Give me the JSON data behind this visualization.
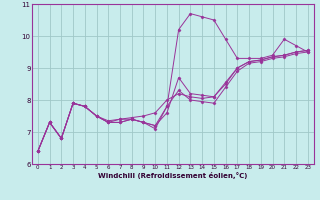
{
  "xlabel": "Windchill (Refroidissement éolien,°C)",
  "bg_color": "#c8ecec",
  "grid_color": "#a0c8c8",
  "line_color": "#993399",
  "xlim": [
    -0.5,
    23.5
  ],
  "ylim": [
    6,
    11
  ],
  "yticks": [
    6,
    7,
    8,
    9,
    10,
    11
  ],
  "xticks": [
    0,
    1,
    2,
    3,
    4,
    5,
    6,
    7,
    8,
    9,
    10,
    11,
    12,
    13,
    14,
    15,
    16,
    17,
    18,
    19,
    20,
    21,
    22,
    23
  ],
  "series": [
    [
      6.4,
      7.3,
      6.8,
      7.9,
      7.8,
      7.5,
      7.3,
      7.4,
      7.4,
      7.3,
      7.1,
      7.8,
      10.2,
      10.7,
      10.6,
      10.5,
      9.9,
      9.3,
      9.3,
      9.3,
      9.4,
      9.9,
      9.7,
      9.5
    ],
    [
      6.4,
      7.3,
      6.8,
      7.9,
      7.8,
      7.5,
      7.3,
      7.3,
      7.4,
      7.3,
      7.2,
      7.6,
      8.7,
      8.2,
      8.15,
      8.1,
      8.5,
      9.0,
      9.2,
      9.25,
      9.35,
      9.4,
      9.5,
      9.55
    ],
    [
      6.4,
      7.3,
      6.8,
      7.9,
      7.8,
      7.5,
      7.3,
      7.3,
      7.4,
      7.3,
      7.2,
      7.8,
      8.3,
      8.0,
      7.95,
      7.9,
      8.4,
      8.9,
      9.15,
      9.2,
      9.3,
      9.35,
      9.45,
      9.5
    ],
    [
      6.4,
      7.3,
      6.8,
      7.9,
      7.8,
      7.5,
      7.35,
      7.4,
      7.45,
      7.5,
      7.6,
      8.0,
      8.2,
      8.1,
      8.05,
      8.1,
      8.55,
      9.0,
      9.2,
      9.25,
      9.35,
      9.4,
      9.5,
      9.55
    ]
  ]
}
